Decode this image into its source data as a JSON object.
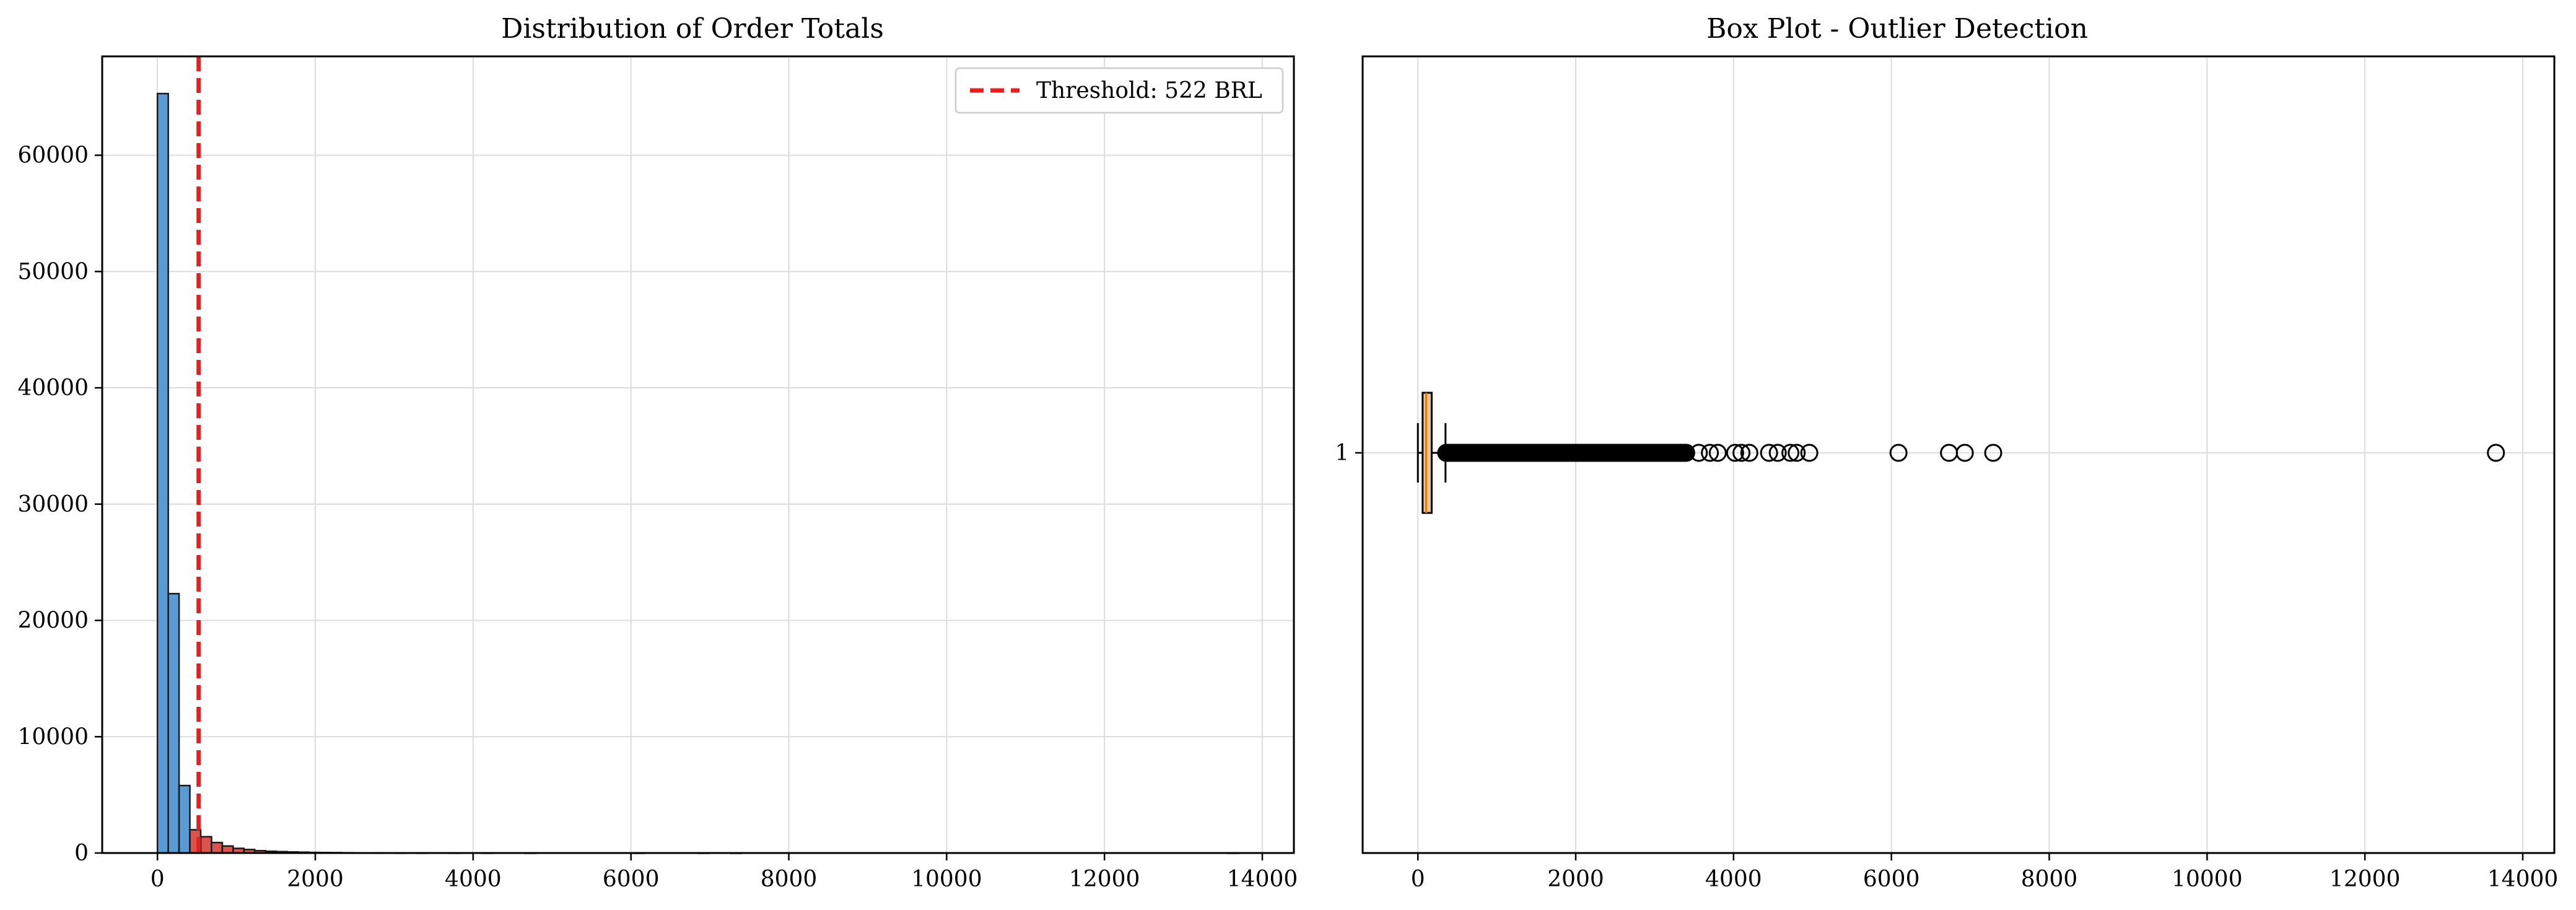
{
  "chart_data": [
    {
      "type": "bar",
      "subtype": "histogram",
      "title": "Distribution of Order Totals",
      "xlim": [
        -700,
        14400
      ],
      "ylim": [
        0,
        68500
      ],
      "xticks": [
        0,
        2000,
        4000,
        6000,
        8000,
        10000,
        12000,
        14000
      ],
      "yticks": [
        0,
        10000,
        20000,
        30000,
        40000,
        50000,
        60000
      ],
      "grid": true,
      "bin_width": 137,
      "bins": [
        {
          "x0": 0,
          "count": 65300
        },
        {
          "x0": 137,
          "count": 22300
        },
        {
          "x0": 274,
          "count": 5800
        },
        {
          "x0": 411,
          "count": 2000
        },
        {
          "x0": 548,
          "count": 1400
        },
        {
          "x0": 685,
          "count": 900
        },
        {
          "x0": 822,
          "count": 600
        },
        {
          "x0": 959,
          "count": 400
        },
        {
          "x0": 1096,
          "count": 300
        },
        {
          "x0": 1233,
          "count": 200
        },
        {
          "x0": 1370,
          "count": 150
        },
        {
          "x0": 1507,
          "count": 120
        },
        {
          "x0": 1644,
          "count": 90
        },
        {
          "x0": 1781,
          "count": 70
        },
        {
          "x0": 1918,
          "count": 50
        },
        {
          "x0": 2055,
          "count": 40
        },
        {
          "x0": 2192,
          "count": 30
        },
        {
          "x0": 2329,
          "count": 20
        },
        {
          "x0": 2466,
          "count": 15
        },
        {
          "x0": 2603,
          "count": 12
        },
        {
          "x0": 2740,
          "count": 10
        },
        {
          "x0": 3014,
          "count": 8
        },
        {
          "x0": 3288,
          "count": 6
        },
        {
          "x0": 3699,
          "count": 5
        },
        {
          "x0": 4110,
          "count": 4
        },
        {
          "x0": 4658,
          "count": 3
        },
        {
          "x0": 6028,
          "count": 1
        },
        {
          "x0": 6850,
          "count": 2
        },
        {
          "x0": 7261,
          "count": 1
        },
        {
          "x0": 13563,
          "count": 1
        }
      ],
      "threshold": {
        "value": 522,
        "label": "Threshold: 522 BRL",
        "color": "#ee1c1c"
      },
      "legend_position": "top-right",
      "colors": {
        "normal": "#5b9bd5",
        "above_threshold": "#d9534f",
        "edge": "#1a1a1a"
      }
    },
    {
      "type": "box",
      "orientation": "horizontal",
      "title": "Box Plot - Outlier Detection",
      "xlim": [
        -700,
        14400
      ],
      "xticks": [
        0,
        2000,
        4000,
        6000,
        8000,
        10000,
        12000,
        14000
      ],
      "yticks": [
        "1"
      ],
      "grid": true,
      "box": {
        "whisker_low": 0,
        "q1": 60,
        "median": 105,
        "q3": 175,
        "whisker_high": 350
      },
      "outliers": [
        360,
        400,
        450,
        500,
        550,
        600,
        650,
        700,
        760,
        820,
        880,
        940,
        1000,
        1080,
        1160,
        1240,
        1320,
        1400,
        1480,
        1560,
        1640,
        1720,
        1800,
        1900,
        2000,
        2100,
        2200,
        2300,
        2400,
        2500,
        2600,
        2700,
        2800,
        2900,
        3000,
        3100,
        3200,
        3300,
        3400,
        3560,
        3700,
        3800,
        4020,
        4100,
        4200,
        4450,
        4560,
        4720,
        4800,
        4960,
        6090,
        6730,
        6930,
        7290,
        13660
      ],
      "colors": {
        "box_fill": "#f3c28a",
        "edge": "#000000"
      }
    }
  ]
}
